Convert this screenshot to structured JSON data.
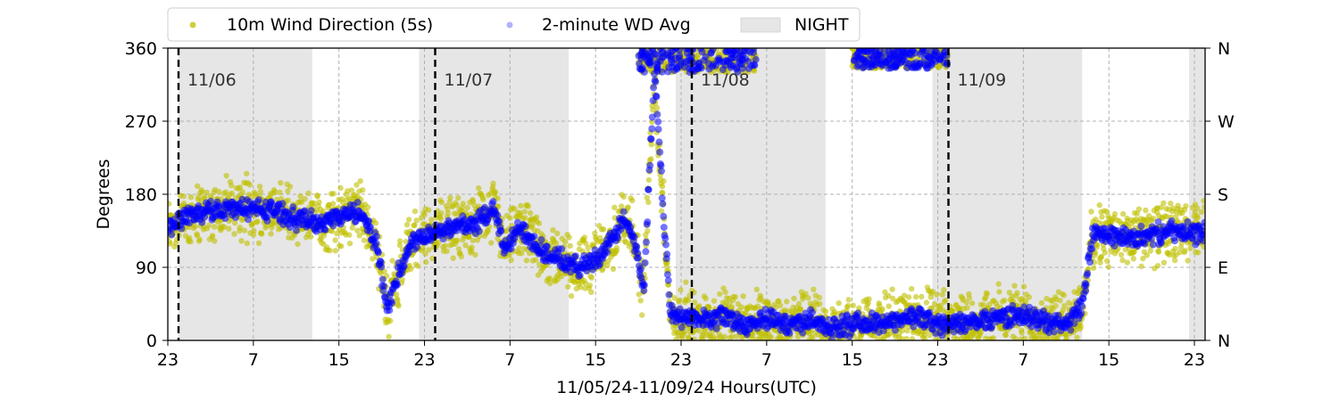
{
  "chart_data": {
    "type": "scatter",
    "xlabel": "11/05/24-11/09/24  Hours(UTC)",
    "ylabel": "Degrees",
    "ylim": [
      0,
      360
    ],
    "xlim_hours": [
      0,
      97
    ],
    "x_tick_labels": [
      "23",
      "7",
      "15",
      "23",
      "7",
      "15",
      "23",
      "7",
      "15",
      "23",
      "7",
      "15",
      "23"
    ],
    "x_tick_hours": [
      0,
      8,
      16,
      24,
      32,
      40,
      48,
      56,
      64,
      72,
      80,
      88,
      96
    ],
    "y_ticks": [
      0,
      90,
      180,
      270,
      360
    ],
    "y_tick_labels": [
      "0",
      "90",
      "180",
      "270",
      "360"
    ],
    "y2_tick_labels": [
      "N",
      "E",
      "S",
      "W",
      "N"
    ],
    "grid": true,
    "legend": {
      "placement": "top",
      "entries": [
        "10m Wind Direction (5s)",
        "2-minute WD Avg",
        "NIGHT"
      ]
    },
    "day_markers": [
      {
        "hour": 1,
        "label": "11/06"
      },
      {
        "hour": 25,
        "label": "11/07"
      },
      {
        "hour": 49,
        "label": "11/08"
      },
      {
        "hour": 73,
        "label": "11/09"
      }
    ],
    "night_periods": [
      [
        1,
        13.5
      ],
      [
        23.5,
        37.5
      ],
      [
        47.5,
        61.5
      ],
      [
        71.5,
        85.5
      ],
      [
        95.5,
        97
      ]
    ],
    "series": [
      {
        "name": "10m Wind Direction (5s)",
        "color": "#bfbf00",
        "hours": [
          0,
          2,
          4,
          6,
          8,
          10,
          12,
          14,
          16,
          18,
          19.5,
          20.5,
          21.5,
          23,
          25,
          27,
          29,
          30.5,
          31.5,
          33,
          35,
          36.5,
          38,
          40,
          41.5,
          42.5,
          43.5,
          44.5,
          45.5,
          47,
          48.5,
          50,
          52,
          54,
          56,
          58,
          60,
          62,
          64,
          66,
          68,
          70,
          72,
          74,
          76,
          78,
          80,
          82,
          84,
          85.5,
          86.5,
          88,
          90,
          92,
          94,
          96,
          97
        ],
        "degrees": [
          140,
          155,
          160,
          163,
          162,
          160,
          150,
          145,
          152,
          160,
          120,
          40,
          80,
          125,
          135,
          140,
          145,
          165,
          110,
          140,
          110,
          100,
          90,
          100,
          120,
          150,
          130,
          60,
          330,
          30,
          30,
          25,
          30,
          20,
          25,
          20,
          25,
          15,
          20,
          20,
          25,
          30,
          20,
          20,
          25,
          30,
          30,
          25,
          20,
          40,
          130,
          130,
          125,
          130,
          135,
          130,
          135
        ],
        "spread": 30
      },
      {
        "name": "2-minute WD Avg",
        "color": "#0000ff",
        "hours": [
          0,
          2,
          4,
          6,
          8,
          10,
          12,
          14,
          16,
          18,
          19.5,
          20.5,
          21.5,
          23,
          25,
          27,
          29,
          30.5,
          31.5,
          33,
          35,
          36.5,
          38,
          40,
          41.5,
          42.5,
          43.5,
          44.5,
          45.5,
          47,
          48.5,
          50,
          52,
          54,
          56,
          58,
          60,
          62,
          64,
          66,
          68,
          70,
          72,
          74,
          76,
          78,
          80,
          82,
          84,
          85.5,
          86.5,
          88,
          90,
          92,
          94,
          96,
          97
        ],
        "degrees": [
          140,
          155,
          160,
          163,
          162,
          160,
          150,
          145,
          152,
          160,
          120,
          40,
          80,
          125,
          135,
          140,
          145,
          165,
          110,
          140,
          110,
          100,
          90,
          100,
          120,
          150,
          130,
          60,
          330,
          30,
          30,
          25,
          30,
          20,
          25,
          20,
          25,
          15,
          20,
          20,
          25,
          30,
          20,
          20,
          25,
          30,
          30,
          25,
          20,
          40,
          130,
          130,
          125,
          130,
          135,
          130,
          135
        ],
        "spread": 10
      }
    ],
    "high_band": {
      "hours": [
        44,
        55
      ],
      "degrees": [
        330,
        360
      ]
    },
    "high_band2": {
      "hours": [
        64,
        73
      ],
      "degrees": [
        335,
        360
      ]
    },
    "colors": {
      "night": "#e6e6e6",
      "grid": "#b0b0b0",
      "day_line": "#000000"
    }
  }
}
